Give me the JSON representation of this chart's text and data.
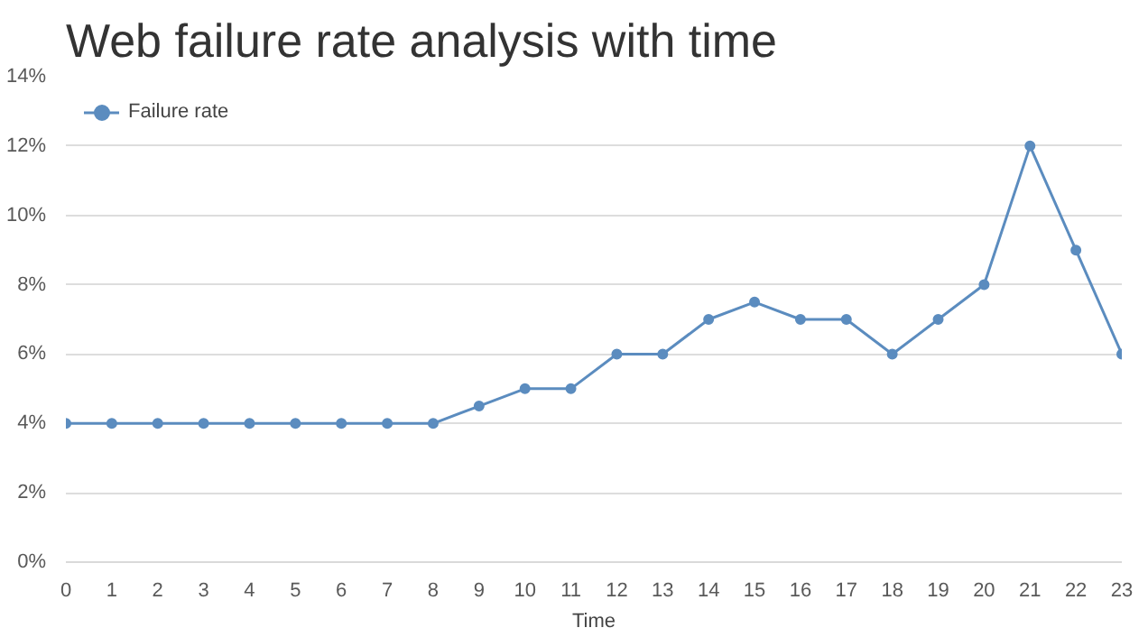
{
  "chart_data": {
    "type": "line",
    "title": "Web failure rate analysis with time",
    "xlabel": "Time",
    "x": [
      0,
      1,
      2,
      3,
      4,
      5,
      6,
      7,
      8,
      9,
      10,
      11,
      12,
      13,
      14,
      15,
      16,
      17,
      18,
      19,
      20,
      21,
      22,
      23
    ],
    "series": [
      {
        "name": "Failure rate",
        "color": "#5b8cbf",
        "values": [
          4,
          4,
          4,
          4,
          4,
          4,
          4,
          4,
          4,
          4.5,
          5,
          5,
          6,
          6,
          7,
          7.5,
          7,
          7,
          6,
          7,
          8,
          12,
          9,
          6
        ]
      }
    ],
    "xlim": [
      0,
      23
    ],
    "xticks": [
      0,
      1,
      2,
      3,
      4,
      5,
      6,
      7,
      8,
      9,
      10,
      11,
      12,
      13,
      14,
      15,
      16,
      17,
      18,
      19,
      20,
      21,
      22,
      23
    ],
    "ylim": [
      0,
      14
    ],
    "yticks": [
      {
        "value": 0,
        "label": "0%"
      },
      {
        "value": 2,
        "label": "2%"
      },
      {
        "value": 4,
        "label": "4%"
      },
      {
        "value": 6,
        "label": "6%"
      },
      {
        "value": 8,
        "label": "8%"
      },
      {
        "value": 10,
        "label": "10%"
      },
      {
        "value": 12,
        "label": "12%"
      },
      {
        "value": 14,
        "label": "14%"
      }
    ],
    "grid": "y",
    "legend": "top left",
    "marker": "circle",
    "line_style": "solid"
  }
}
